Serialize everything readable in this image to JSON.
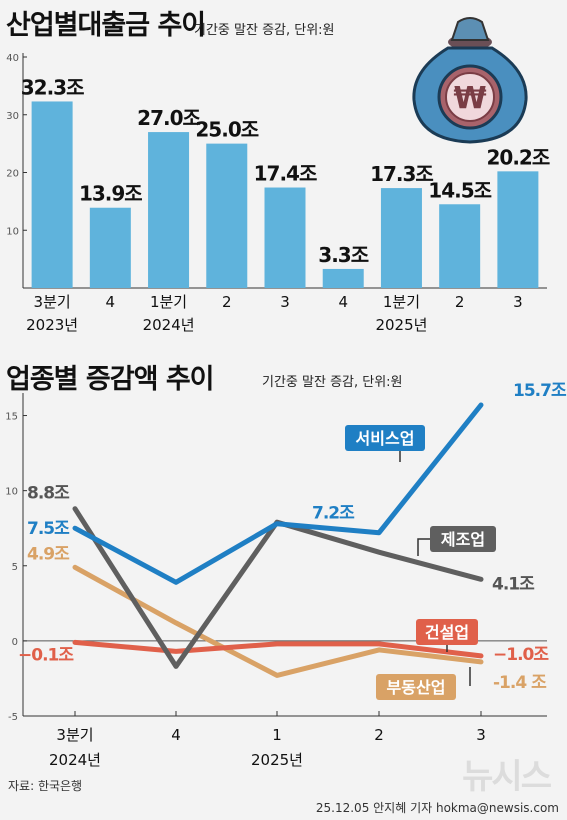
{
  "chart_data": [
    {
      "type": "bar",
      "title": "산업별대출금 추이",
      "subtitle": "기간중 말잔 증감, 단위:원",
      "categories": [
        "3분기",
        "4",
        "1분기",
        "2",
        "3",
        "4",
        "1분기",
        "2",
        "3"
      ],
      "year_labels": [
        {
          "label": "2023년",
          "index": 0
        },
        {
          "label": "2024년",
          "index": 2
        },
        {
          "label": "2025년",
          "index": 6
        }
      ],
      "values": [
        32.3,
        13.9,
        27.0,
        25.0,
        17.4,
        3.3,
        17.3,
        14.5,
        20.2
      ],
      "value_labels": [
        "32.3조",
        "13.9조",
        "27.0조",
        "25.0조",
        "17.4조",
        "3.3조",
        "17.3조",
        "14.5조",
        "20.2조"
      ],
      "yticks": [
        "40",
        "30",
        "20",
        "10"
      ],
      "ylim": [
        0,
        40
      ],
      "grid": false,
      "bar_color": "#5fb3dc",
      "icon": "money-bag-won-icon"
    },
    {
      "type": "line",
      "title": "업종별 증감액 추이",
      "subtitle": "기간중 말잔 증감, 단위:원",
      "categories": [
        "3분기",
        "4",
        "1",
        "2",
        "3"
      ],
      "year_labels": [
        {
          "label": "2024년",
          "index": 0
        },
        {
          "label": "2025년",
          "index": 2
        }
      ],
      "yticks": [
        "15",
        "10",
        "5",
        "0",
        "-5"
      ],
      "ylim": [
        -5,
        16.5
      ],
      "series": [
        {
          "name": "서비스업",
          "values": [
            7.5,
            3.9,
            7.8,
            7.2,
            15.7
          ],
          "color": "#1f7fc4",
          "start_label": "7.5조",
          "mid_label": "7.2조",
          "end_label": "15.7조"
        },
        {
          "name": "제조업",
          "values": [
            8.8,
            -1.7,
            7.9,
            5.9,
            4.1
          ],
          "color": "#5f5f5f",
          "start_label": "8.8조",
          "end_label": "4.1조"
        },
        {
          "name": "건설업",
          "values": [
            -0.1,
            -0.7,
            -0.2,
            -0.2,
            -1.0
          ],
          "color": "#e0604a",
          "start_label": "−0.1조",
          "end_label": "−1.0조"
        },
        {
          "name": "부동산업",
          "values": [
            4.9,
            1.2,
            -2.3,
            -0.6,
            -1.4
          ],
          "color": "#d9a266",
          "start_label": "4.9조",
          "end_label": "-1.4 조"
        }
      ]
    }
  ],
  "footer": {
    "source": "자료: 한국은행",
    "credit": "25.12.05 안지혜 기자 hokma@newsis.com",
    "watermark": "뉴시스"
  }
}
